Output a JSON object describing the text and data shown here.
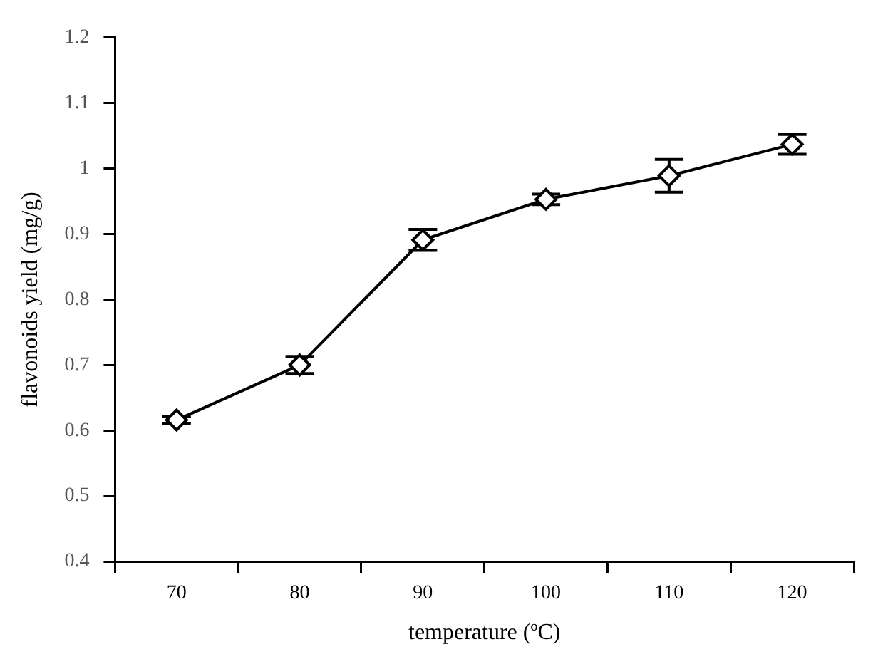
{
  "chart_data": {
    "type": "line",
    "xlabel": "temperature (ºC)",
    "ylabel": "flavonoids yield (mg/g)",
    "categories": [
      "70",
      "80",
      "90",
      "100",
      "110",
      "120"
    ],
    "series": [
      {
        "color": "#000000",
        "values": [
          0.616,
          0.7,
          0.891,
          0.953,
          0.989,
          1.037
        ],
        "errors": [
          0.005,
          0.013,
          0.016,
          0.008,
          0.025,
          0.015
        ]
      }
    ],
    "ylim": [
      0.4,
      1.2
    ],
    "yticks": [
      0.4,
      0.5,
      0.6,
      0.7,
      0.8,
      0.9,
      1,
      1.1,
      1.2
    ],
    "grid": false,
    "legend": false,
    "marker": "diamond",
    "line_style": "solid"
  }
}
